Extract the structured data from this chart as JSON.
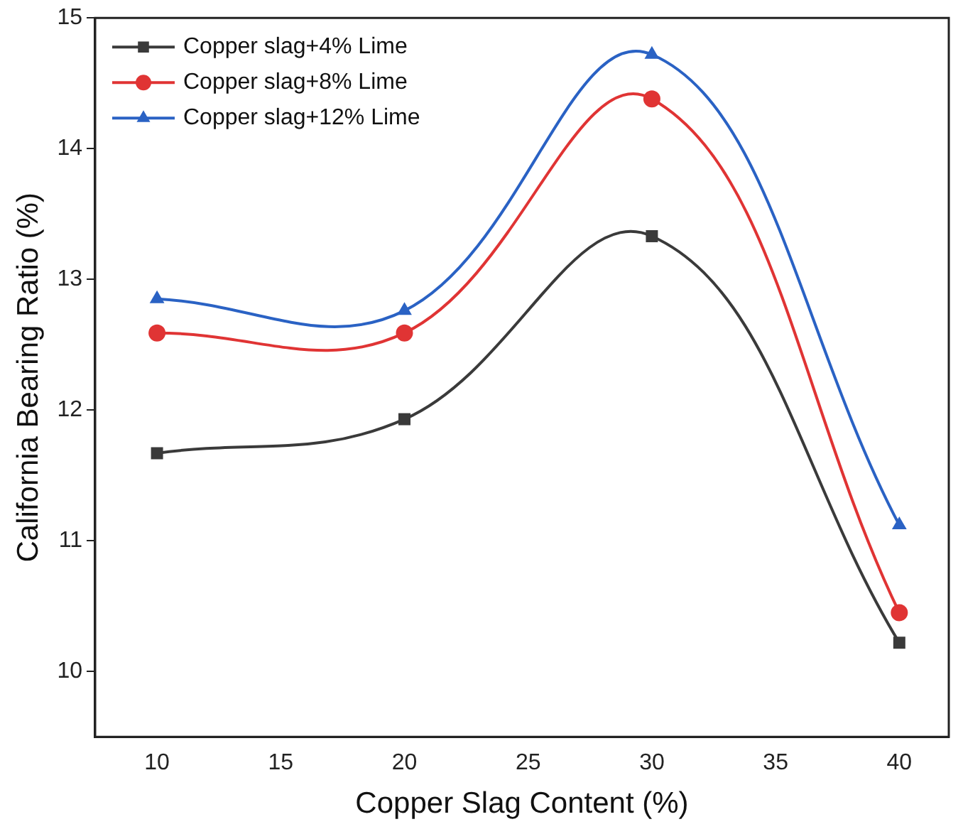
{
  "chart_data": {
    "type": "line",
    "xlabel": "Copper Slag Content (%)",
    "ylabel": "California Bearing Ratio (%)",
    "x": [
      10,
      20,
      30,
      40
    ],
    "series": [
      {
        "name": "Copper slag+4% Lime",
        "color": "#3a3a3a",
        "marker": "square",
        "values": [
          11.67,
          11.93,
          13.33,
          10.22
        ]
      },
      {
        "name": "Copper slag+8% Lime",
        "color": "#e03434",
        "marker": "circle",
        "values": [
          12.59,
          12.59,
          14.38,
          10.45
        ]
      },
      {
        "name": "Copper slag+12% Lime",
        "color": "#2a62c4",
        "marker": "triangle",
        "values": [
          12.85,
          12.76,
          14.72,
          11.12
        ]
      }
    ],
    "xlim": [
      7.5,
      42
    ],
    "xticks": [
      10,
      15,
      20,
      25,
      30,
      35,
      40
    ],
    "ylim": [
      9.5,
      15
    ],
    "yticks": [
      10,
      11,
      12,
      13,
      14,
      15
    ],
    "grid": false,
    "legend": "top left",
    "line_style": "solid"
  }
}
